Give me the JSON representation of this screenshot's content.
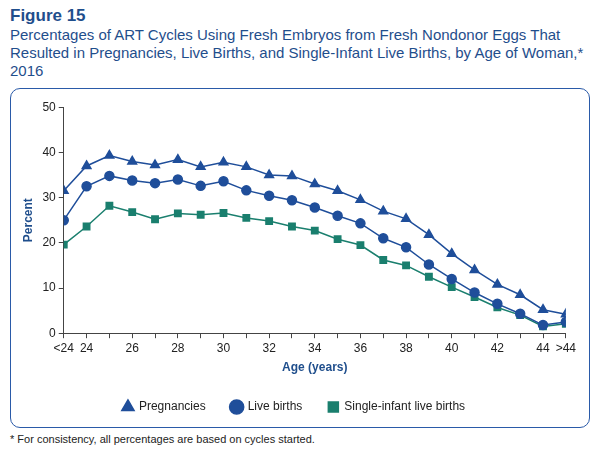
{
  "chart_data": {
    "type": "line",
    "title": "Figure 15",
    "subtitle": "Percentages of ART Cycles Using Fresh Embryos from Fresh Nondonor Eggs That Resulted in Pregnancies, Live Births, and Single-Infant Live Births, by Age of Woman,* 2016",
    "x_label": "Age (years)",
    "y_label": "Percent",
    "annotations": [
      "* For consistency, all percentages are based on cycles started."
    ],
    "categories": [
      "<24",
      "24",
      null,
      "26",
      null,
      "28",
      null,
      "30",
      null,
      "32",
      null,
      "34",
      null,
      "36",
      null,
      "38",
      null,
      "40",
      null,
      "42",
      null,
      "44",
      ">44"
    ],
    "series": [
      {
        "name": "Pregnancies",
        "color": "#1f4e9a",
        "marker": "triangle",
        "values": [
          31.5,
          37,
          39.3,
          38,
          37.2,
          38.4,
          36.8,
          37.8,
          36.8,
          35,
          34.8,
          33,
          31.5,
          29.5,
          27,
          25.3,
          21.8,
          17.6,
          14,
          10.8,
          8.5,
          5.2,
          4.2
        ]
      },
      {
        "name": "Live births",
        "color": "#1f4e9a",
        "marker": "circle",
        "values": [
          25,
          32.5,
          34.8,
          33.8,
          33.2,
          34,
          32.6,
          33.6,
          31.6,
          30.4,
          29.4,
          27.8,
          26,
          24.3,
          21,
          19,
          15.2,
          12,
          9,
          6.5,
          4.3,
          1.8,
          2.5
        ]
      },
      {
        "name": "Single-infant live births",
        "color": "#1a7f6e",
        "marker": "square",
        "values": [
          19.6,
          23.6,
          28.2,
          26.8,
          25.2,
          26.5,
          26.2,
          26.6,
          25.5,
          24.8,
          23.6,
          22.7,
          20.8,
          19.5,
          16.2,
          15,
          12.5,
          10.2,
          8,
          5.7,
          4,
          1.5,
          2.1
        ]
      }
    ],
    "ylim": [
      0,
      50
    ],
    "yticks": [
      0,
      10,
      20,
      30,
      40,
      50
    ],
    "grid": false,
    "legend": "bottom"
  }
}
